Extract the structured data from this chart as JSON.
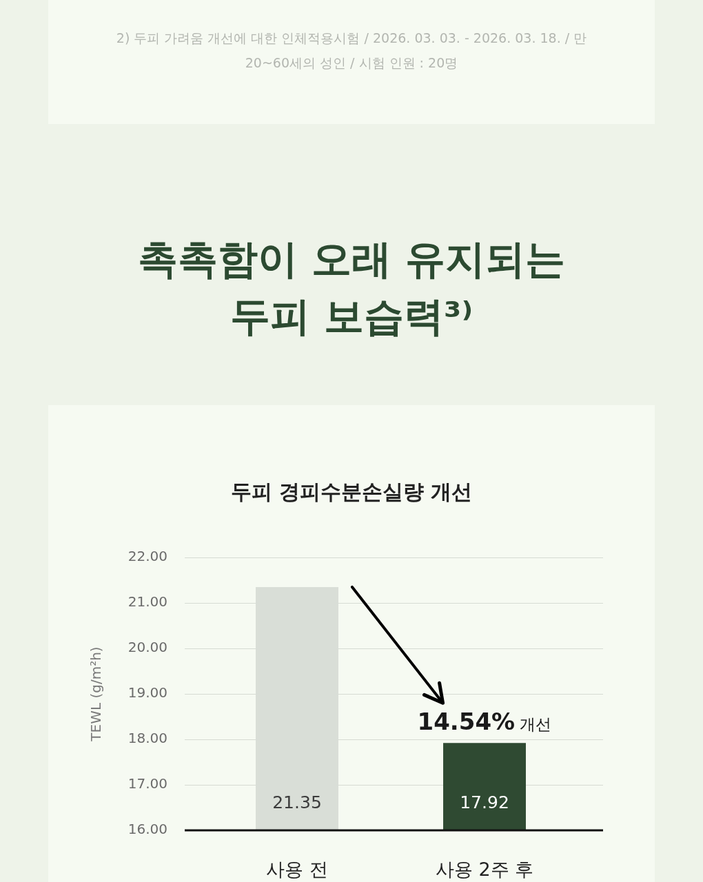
{
  "chart_data": {
    "type": "bar",
    "title": "촉촉함이 오래 유지되는 두피 보습력³⁾",
    "subtitle": "두피 경피수분손실량 개선",
    "ylabel": "TEWL (g/m²h)",
    "categories": [
      "사용 전",
      "사용 2주 후"
    ],
    "values": [
      21.35,
      17.92
    ],
    "colors": [
      "#d9ded7",
      "#2f4a32"
    ],
    "ylim": [
      16,
      22
    ],
    "yticks": [
      {
        "value": 16,
        "label": "16.00"
      },
      {
        "value": 17,
        "label": "17.00"
      },
      {
        "value": 18,
        "label": "18.00"
      },
      {
        "value": 19,
        "label": "19.00"
      },
      {
        "value": 20,
        "label": "20.00"
      },
      {
        "value": 21,
        "label": "21.00"
      },
      {
        "value": 22,
        "label": "22.00"
      }
    ],
    "grid": "y",
    "data_labels": true,
    "annotations": [
      "2) 두피 가려움 개선에 대한 인체적용시험 / 2026. 03. 03. - 2026. 03. 18. / 만 20~60세의 성인 / 시험 인원 : 20명",
      "14.54% 개선"
    ]
  }
}
